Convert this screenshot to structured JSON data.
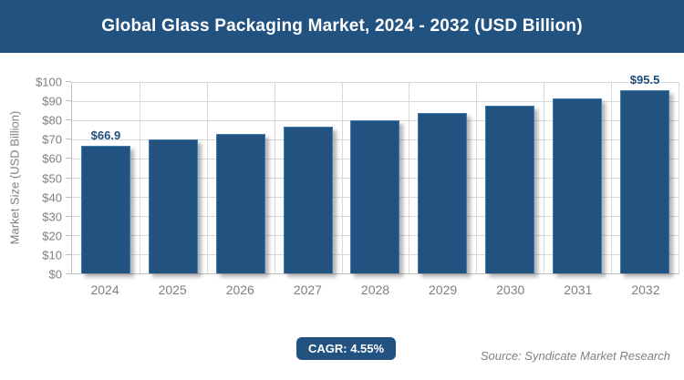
{
  "header": {
    "title": "Global Glass Packaging Market, 2024 - 2032 (USD Billion)"
  },
  "chart_data": {
    "type": "bar",
    "title": "Global Glass Packaging Market, 2024 - 2032 (USD Billion)",
    "categories": [
      "2024",
      "2025",
      "2026",
      "2027",
      "2028",
      "2029",
      "2030",
      "2031",
      "2032"
    ],
    "values": [
      66.9,
      69.9,
      73.1,
      76.5,
      79.9,
      83.6,
      87.4,
      91.3,
      95.5
    ],
    "bar_labels": [
      "$66.9",
      "",
      "",
      "",
      "",
      "",
      "",
      "",
      "$95.5"
    ],
    "ylabel": "Market Size (USD Billion)",
    "xlabel": "",
    "ylim": [
      0,
      100
    ],
    "yticks": [
      "$0",
      "$10",
      "$20",
      "$30",
      "$40",
      "$50",
      "$60",
      "$70",
      "$80",
      "$90",
      "$100"
    ],
    "grid": true,
    "legend_position": "none"
  },
  "footer": {
    "cagr_label": "CAGR: 4.55%",
    "source": "Source: Syndicate Market Research"
  },
  "colors": {
    "background": "#ffffff",
    "header_bg": "#225380",
    "header_text": "#ffffff",
    "bar_color": "#225380",
    "bar_border": "#3d7cb0",
    "label_color": "#1f4e79",
    "axis_text": "#7f7f7f",
    "gridline": "#d9d9d9",
    "axis_line": "#bfbfbf",
    "badge_bg": "#225380",
    "badge_text": "#ffffff",
    "source_text": "#7b8288"
  }
}
